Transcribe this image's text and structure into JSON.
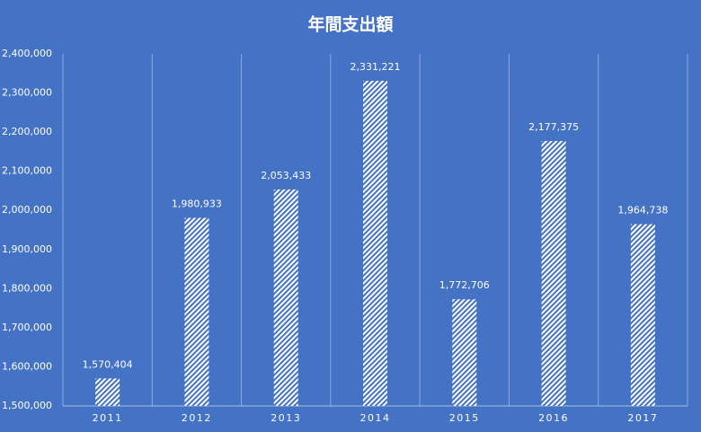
{
  "chart_data": {
    "type": "bar",
    "title": "年間支出額",
    "categories": [
      "2011",
      "2012",
      "2013",
      "2014",
      "2015",
      "2016",
      "2017"
    ],
    "values": [
      1570404,
      1980933,
      2053433,
      2331221,
      1772706,
      2177375,
      1964738
    ],
    "value_labels": [
      "1,570,404",
      "1,980,933",
      "2,053,433",
      "2,331,221",
      "1,772,706",
      "2,177,375",
      "1,964,738"
    ],
    "color": "#ffffff",
    "ylim": [
      1500000,
      2400000
    ],
    "yticks": [
      {
        "value": 1500000,
        "label": "1,500,000"
      },
      {
        "value": 1600000,
        "label": "1,600,000"
      },
      {
        "value": 1700000,
        "label": "1,700,000"
      },
      {
        "value": 1800000,
        "label": "1,800,000"
      },
      {
        "value": 1900000,
        "label": "1,900,000"
      },
      {
        "value": 2000000,
        "label": "2,000,000"
      },
      {
        "value": 2100000,
        "label": "2,100,000"
      },
      {
        "value": 2200000,
        "label": "2,200,000"
      },
      {
        "value": 2300000,
        "label": "2,300,000"
      },
      {
        "value": 2400000,
        "label": "2,400,000"
      }
    ],
    "grid": true
  }
}
